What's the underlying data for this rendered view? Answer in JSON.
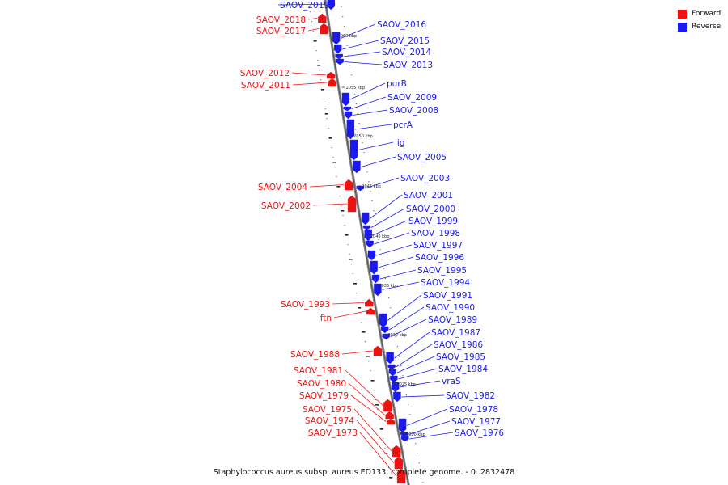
{
  "caption": "Staphylococcus aureus subsp. aureus ED133, complete genome. - 0..2832478",
  "legend": {
    "forward_label": "Forward",
    "reverse_label": "Reverse",
    "forward_color": "#ee1111",
    "reverse_color": "#1a1aee"
  },
  "genes": [
    {
      "label": "SAOV_2019",
      "strand": "reverse"
    },
    {
      "label": "SAOV_2018",
      "strand": "forward"
    },
    {
      "label": "SAOV_2017",
      "strand": "forward"
    },
    {
      "label": "SAOV_2016",
      "strand": "reverse"
    },
    {
      "label": "SAOV_2015",
      "strand": "reverse"
    },
    {
      "label": "SAOV_2014",
      "strand": "reverse"
    },
    {
      "label": "SAOV_2013",
      "strand": "reverse"
    },
    {
      "label": "SAOV_2012",
      "strand": "forward"
    },
    {
      "label": "SAOV_2011",
      "strand": "forward"
    },
    {
      "label": "purB",
      "strand": "reverse"
    },
    {
      "label": "SAOV_2009",
      "strand": "reverse"
    },
    {
      "label": "SAOV_2008",
      "strand": "reverse"
    },
    {
      "label": "pcrA",
      "strand": "reverse"
    },
    {
      "label": "lig",
      "strand": "reverse"
    },
    {
      "label": "SAOV_2005",
      "strand": "reverse"
    },
    {
      "label": "SAOV_2004",
      "strand": "forward"
    },
    {
      "label": "SAOV_2003",
      "strand": "reverse"
    },
    {
      "label": "SAOV_2002",
      "strand": "forward"
    },
    {
      "label": "SAOV_2001",
      "strand": "reverse"
    },
    {
      "label": "SAOV_2000",
      "strand": "reverse"
    },
    {
      "label": "SAOV_1999",
      "strand": "reverse"
    },
    {
      "label": "SAOV_1998",
      "strand": "reverse"
    },
    {
      "label": "SAOV_1997",
      "strand": "reverse"
    },
    {
      "label": "SAOV_1996",
      "strand": "reverse"
    },
    {
      "label": "SAOV_1995",
      "strand": "reverse"
    },
    {
      "label": "SAOV_1994",
      "strand": "reverse"
    },
    {
      "label": "SAOV_1993",
      "strand": "forward"
    },
    {
      "label": "ftn",
      "strand": "forward"
    },
    {
      "label": "SAOV_1991",
      "strand": "reverse"
    },
    {
      "label": "SAOV_1990",
      "strand": "reverse"
    },
    {
      "label": "SAOV_1989",
      "strand": "reverse"
    },
    {
      "label": "SAOV_1988",
      "strand": "forward"
    },
    {
      "label": "SAOV_1987",
      "strand": "reverse"
    },
    {
      "label": "SAOV_1986",
      "strand": "reverse"
    },
    {
      "label": "SAOV_1985",
      "strand": "reverse"
    },
    {
      "label": "SAOV_1984",
      "strand": "reverse"
    },
    {
      "label": "vraS",
      "strand": "reverse"
    },
    {
      "label": "SAOV_1982",
      "strand": "reverse"
    },
    {
      "label": "SAOV_1981",
      "strand": "forward"
    },
    {
      "label": "SAOV_1980",
      "strand": "forward"
    },
    {
      "label": "SAOV_1979",
      "strand": "forward"
    },
    {
      "label": "SAOV_1978",
      "strand": "reverse"
    },
    {
      "label": "SAOV_1977",
      "strand": "reverse"
    },
    {
      "label": "SAOV_1976",
      "strand": "reverse"
    },
    {
      "label": "SAOV_1975",
      "strand": "forward"
    },
    {
      "label": "SAOV_1974",
      "strand": "forward"
    },
    {
      "label": "SAOV_1973",
      "strand": "forward"
    }
  ],
  "ticks": [
    "2060 kbp",
    "2055 kbp",
    "2050 kbp",
    "2045 kbp",
    "2040 kbp",
    "2035 kbp",
    "2030 kbp",
    "2025 kbp",
    "2020 kbp"
  ]
}
